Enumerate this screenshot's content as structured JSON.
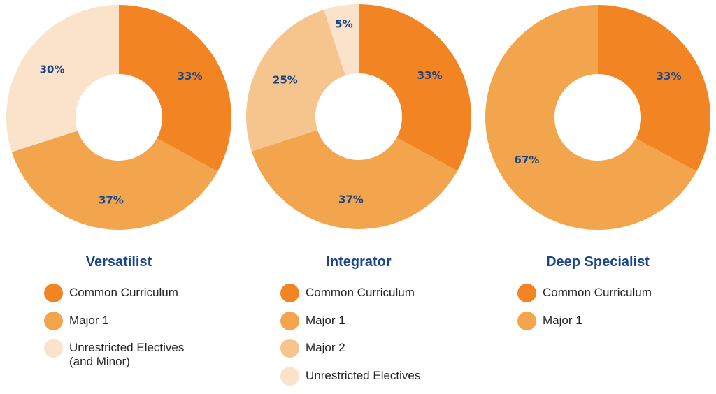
{
  "chart_data": [
    {
      "type": "pie",
      "title": "Versatilist",
      "categories": [
        "Common Curriculum",
        "Major 1",
        "Unrestricted Electives\n(and Minor)"
      ],
      "values": [
        33,
        37,
        30
      ],
      "labels": [
        "33%",
        "37%",
        "30%"
      ],
      "colors": [
        "#f28424",
        "#f2a54d",
        "#fbe3cb"
      ]
    },
    {
      "type": "pie",
      "title": "Integrator",
      "categories": [
        "Common Curriculum",
        "Major 1",
        "Major 2",
        "Unrestricted Electives"
      ],
      "values": [
        33,
        37,
        25,
        5
      ],
      "labels": [
        "33%",
        "37%",
        "25%",
        "5%"
      ],
      "colors": [
        "#f28424",
        "#f2a54d",
        "#f6c48d",
        "#fbe3cb"
      ]
    },
    {
      "type": "pie",
      "title": "Deep Specialist",
      "categories": [
        "Common Curriculum",
        "Major 1"
      ],
      "values": [
        33,
        67
      ],
      "labels": [
        "33%",
        "67%"
      ],
      "colors": [
        "#f28424",
        "#f2a54d"
      ]
    }
  ]
}
